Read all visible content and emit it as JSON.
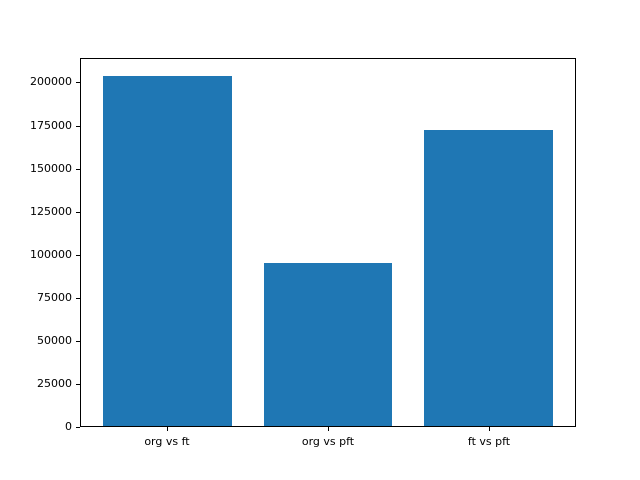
{
  "chart_data": {
    "type": "bar",
    "categories": [
      "org vs ft",
      "org vs pft",
      "ft vs pft"
    ],
    "values": [
      204000,
      95000,
      173000
    ],
    "title": "",
    "xlabel": "",
    "ylabel": "",
    "ylim": [
      0,
      214200
    ],
    "yticks": [
      0,
      25000,
      50000,
      75000,
      100000,
      125000,
      150000,
      175000,
      200000
    ],
    "bar_color": "#1f77b4",
    "grid": false,
    "legend": "none"
  },
  "figure": {
    "background_color": "#ffffff",
    "axes_edge_color": "#000000"
  }
}
